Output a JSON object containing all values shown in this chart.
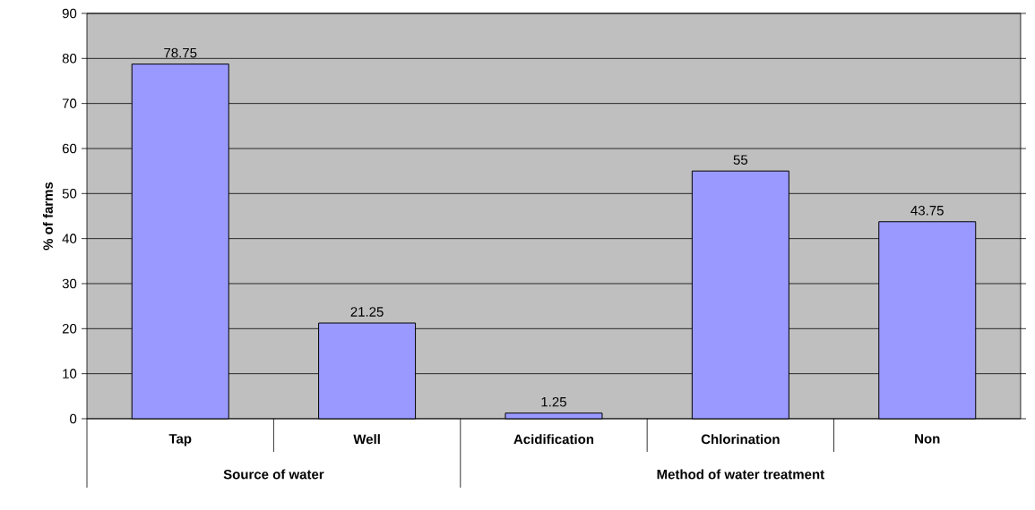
{
  "chart_data": {
    "type": "bar",
    "ylabel": "% of farms",
    "categories": [
      "Tap",
      "Well",
      "Acidification",
      "Chlorination",
      "Non"
    ],
    "values": [
      78.75,
      21.25,
      1.25,
      55,
      43.75
    ],
    "color": "#9999ff",
    "ylim": [
      0,
      90
    ],
    "yticks": [
      0,
      10,
      20,
      30,
      40,
      50,
      60,
      70,
      80,
      90
    ],
    "grid": "y",
    "data_labels": true,
    "annotations": [
      "Source of water",
      "Method of water treatment"
    ]
  }
}
